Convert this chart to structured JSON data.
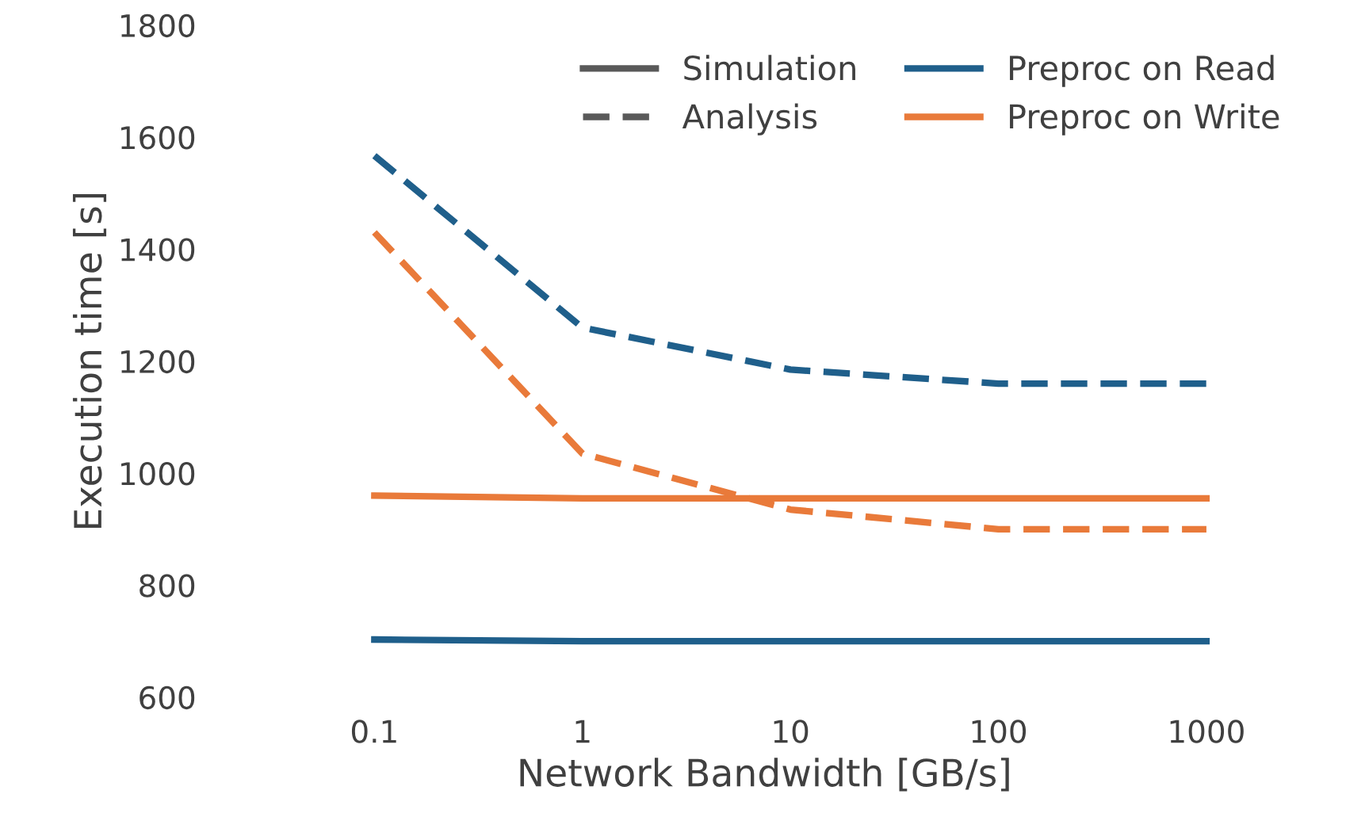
{
  "chart_data": {
    "type": "line",
    "xlabel": "Network Bandwidth [GB/s]",
    "ylabel": "Execution time [s]",
    "categories": [
      "0.1",
      "1",
      "10",
      "100",
      "1000"
    ],
    "ylim": [
      600,
      1800
    ],
    "yticks": [
      600,
      800,
      1000,
      1200,
      1400,
      1600,
      1800
    ],
    "grid": false,
    "legend": "top right",
    "marker": "none",
    "series": [
      {
        "name": "Simulation",
        "color": "#595959",
        "line_style": "solid",
        "values": [
          null,
          null,
          null,
          null,
          null
        ]
      },
      {
        "name": "Analysis",
        "color": "#595959",
        "line_style": "dashed",
        "values": [
          null,
          null,
          null,
          null,
          null
        ]
      },
      {
        "name": "Preproc on Read",
        "color": "#1f5f8b",
        "line_style": "solid",
        "values": [
          703,
          700,
          700,
          700,
          700
        ]
      },
      {
        "name": "Preproc on Write",
        "color": "#e97a3a",
        "line_style": "solid",
        "values": [
          960,
          955,
          955,
          955,
          955
        ]
      },
      {
        "color": "#1f5f8b",
        "line_style": "dashed",
        "values": [
          1567,
          1260,
          1185,
          1160,
          1160
        ]
      },
      {
        "color": "#e97a3a",
        "line_style": "dashed",
        "values": [
          1430,
          1035,
          935,
          900,
          900
        ]
      }
    ]
  }
}
